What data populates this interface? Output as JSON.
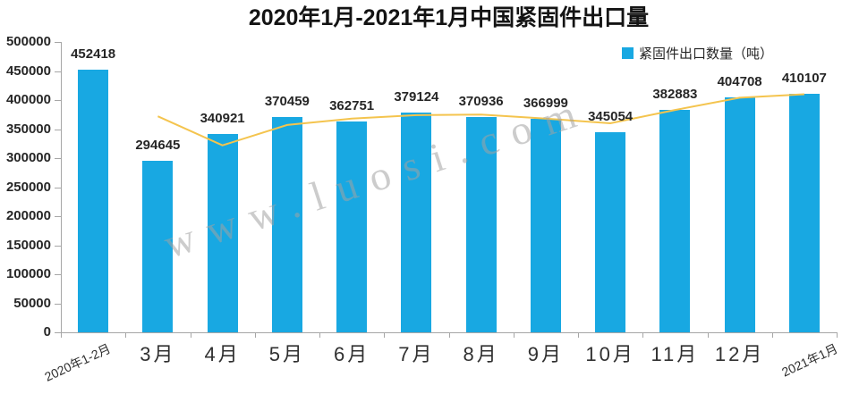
{
  "watermark": {
    "text": "www.luosi.com"
  },
  "chart_data": {
    "type": "bar",
    "title": "2020年1月-2021年1月中国紧固件出口量",
    "categories": [
      "2020年1-2月",
      "3月",
      "4月",
      "5月",
      "6月",
      "7月",
      "8月",
      "9月",
      "10月",
      "11月",
      "12月",
      "2021年1月"
    ],
    "series": [
      {
        "name": "紧固件出口数量（吨）",
        "type": "bar",
        "color": "#18a8e2",
        "in_legend": true,
        "data_labels": true,
        "values": [
          452418,
          294645,
          340921,
          370459,
          362751,
          379124,
          370936,
          366999,
          345054,
          382883,
          404708,
          410107
        ]
      },
      {
        "name": "trend-line",
        "type": "line",
        "color": "#f4c44e",
        "in_legend": false,
        "estimated": true,
        "values": [
          null,
          372000,
          322000,
          357000,
          368000,
          374000,
          375000,
          368000,
          360000,
          383000,
          404000,
          410000
        ]
      }
    ],
    "ylim": [
      0,
      500000
    ],
    "ytick_labels": [
      "0",
      "50000",
      "100000",
      "150000",
      "200000",
      "250000",
      "300000",
      "350000",
      "400000",
      "450000",
      "500000"
    ],
    "grid": false,
    "legend_position": "top-right",
    "axis_color": "#a6a6a6"
  }
}
